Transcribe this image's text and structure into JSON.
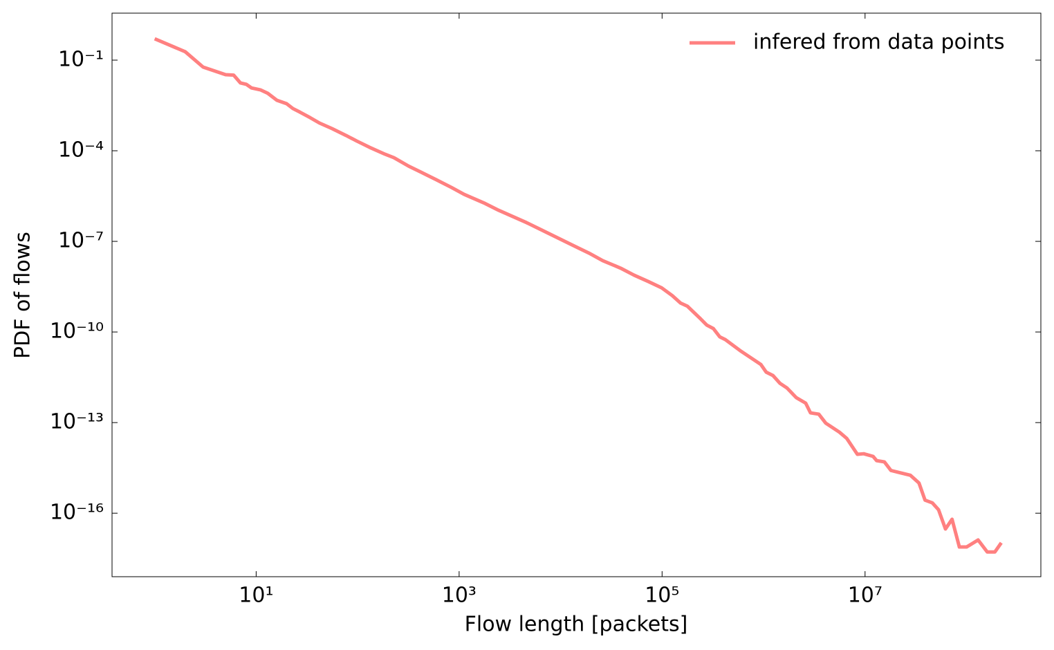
{
  "chart_data": {
    "type": "line",
    "xlabel": "Flow length [packets]",
    "ylabel": "PDF of flows",
    "xscale": "log",
    "yscale": "log",
    "grid": false,
    "legend": "upper right",
    "xlim": [
      0.38,
      540000000
    ],
    "ylim": [
      7.9e-19,
      3.6
    ],
    "xticks": [
      {
        "value": 10,
        "label": "10¹"
      },
      {
        "value": 1000,
        "label": "10³"
      },
      {
        "value": 100000,
        "label": "10⁵"
      },
      {
        "value": 10000000,
        "label": "10⁷"
      }
    ],
    "yticks": [
      {
        "value": 0.1,
        "label": "10⁻¹"
      },
      {
        "value": 0.0001,
        "label": "10⁻⁴"
      },
      {
        "value": 1e-07,
        "label": "10⁻⁷"
      },
      {
        "value": 1e-10,
        "label": "10⁻¹⁰"
      },
      {
        "value": 1e-13,
        "label": "10⁻¹³"
      },
      {
        "value": 1e-16,
        "label": "10⁻¹⁶"
      }
    ],
    "x": [
      1,
      2,
      3,
      5,
      6,
      7,
      8,
      9,
      11,
      13,
      16,
      20,
      23,
      27,
      34,
      42,
      56,
      77,
      98,
      131,
      186,
      228,
      318,
      420,
      595,
      840,
      1120,
      1800,
      2450,
      4600,
      6300,
      13800,
      19000,
      26000,
      39000,
      53000,
      73000,
      99000,
      126000,
      152000,
      178000,
      235000,
      275000,
      320000,
      370000,
      420000,
      600000,
      940000,
      1060000,
      1240000,
      1450000,
      1700000,
      2100000,
      2600000,
      2900000,
      3500000,
      4100000,
      5600000,
      6600000,
      8400000,
      9700000,
      12000000,
      13000000,
      15500000,
      18000000,
      22000000,
      28000000,
      34000000,
      39000000,
      46000000,
      53000000,
      62000000,
      72000000,
      85000000,
      100000000,
      130000000,
      160000000,
      190000000,
      220000000
    ],
    "series": [
      {
        "name": "infered from data points",
        "color": "#ff8080",
        "values": [
          0.51,
          0.19,
          0.059,
          0.033,
          0.032,
          0.0176,
          0.0158,
          0.012,
          0.0104,
          0.008,
          0.0047,
          0.0036,
          0.0025,
          0.0019,
          0.00125,
          0.00083,
          0.00054,
          0.00032,
          0.00021,
          0.00013,
          7.7e-05,
          5.9e-05,
          3.1e-05,
          1.96e-05,
          1.1e-05,
          6.1e-06,
          3.6e-06,
          1.8e-06,
          1.07e-06,
          4.2e-07,
          2.5e-07,
          6.9e-08,
          4.1e-08,
          2.3e-08,
          1.3e-08,
          7.6e-09,
          4.7e-09,
          2.9e-09,
          1.6e-09,
          9.1e-10,
          7.1e-10,
          2.9e-10,
          1.7e-10,
          1.3e-10,
          6.9e-11,
          5.6e-11,
          2.3e-11,
          8.4e-12,
          4.7e-12,
          3.6e-12,
          2e-12,
          1.4e-12,
          6.7e-13,
          4.4e-13,
          2.1e-13,
          1.9e-13,
          9.6e-14,
          4.8e-14,
          3e-14,
          8.9e-15,
          9.3e-15,
          7.6e-15,
          5.5e-15,
          5e-15,
          2.6e-15,
          2.2e-15,
          1.8e-15,
          1e-15,
          2.7e-16,
          2.2e-16,
          1.3e-16,
          3e-17,
          6.3e-17,
          7.6e-18,
          7.6e-18,
          1.3e-17,
          5.2e-18,
          5.2e-18,
          1.05e-17
        ]
      }
    ]
  }
}
